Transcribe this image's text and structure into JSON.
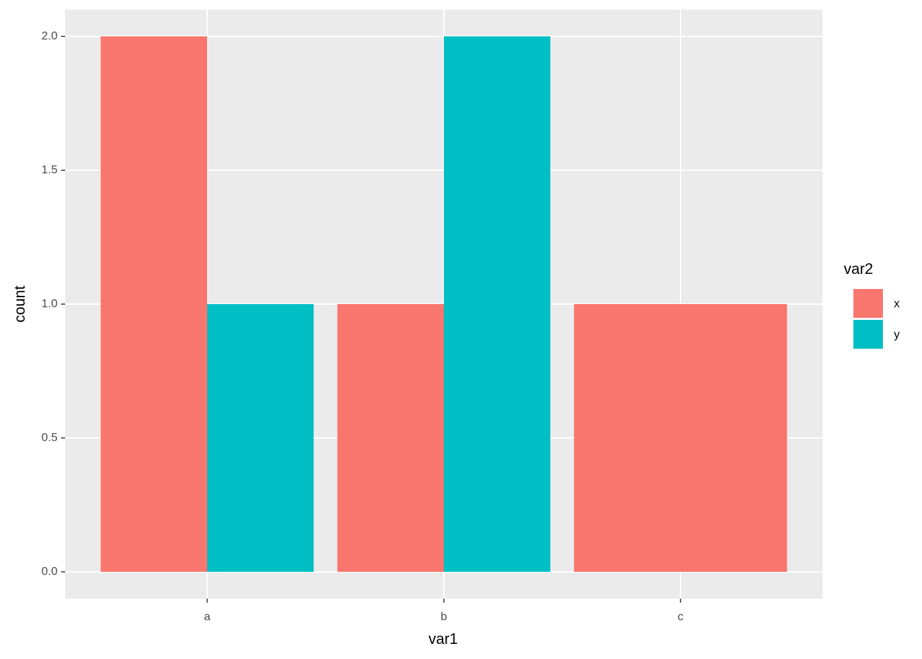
{
  "chart_data": {
    "type": "bar",
    "x_label": "var1",
    "y_label": "count",
    "legend_title": "var2",
    "categories": [
      "a",
      "b",
      "c"
    ],
    "series": [
      {
        "name": "x",
        "color": "#f8766d",
        "values": [
          2,
          1,
          1
        ]
      },
      {
        "name": "y",
        "color": "#00bfc4",
        "values": [
          1,
          2,
          null
        ]
      }
    ],
    "ylim": [
      -0.1,
      2.1
    ],
    "yticks": [
      {
        "value": 0,
        "label": "0.0"
      },
      0.5,
      {
        "value": 1,
        "label": "1.0"
      },
      1.5,
      {
        "value": 2,
        "label": "2.0"
      }
    ],
    "grid": true,
    "legend": "right"
  }
}
